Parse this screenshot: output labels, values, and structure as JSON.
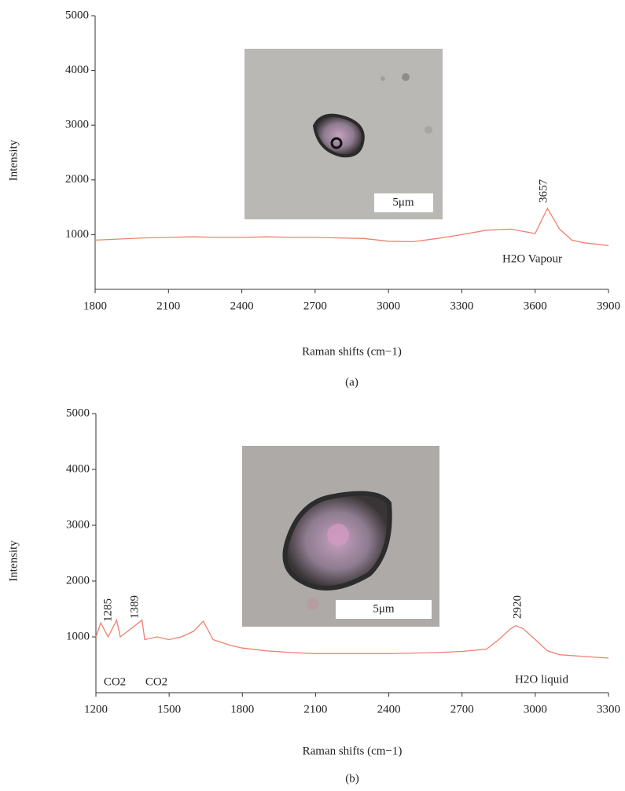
{
  "chart_data": [
    {
      "type": "line",
      "xlabel": "Raman shifts (cm−1)",
      "ylabel": "Intensity",
      "caption": "(a)",
      "xlim": [
        1800,
        3900
      ],
      "xticks": [
        1800,
        2100,
        2400,
        2700,
        3000,
        3300,
        3600,
        3900
      ],
      "ylim": [
        0,
        5000
      ],
      "yticks": [
        1000,
        2000,
        3000,
        4000,
        5000
      ],
      "annotations": [
        "3657",
        "H2O Vapour"
      ],
      "image_scale_label": "5μm",
      "x": [
        1800,
        1900,
        2000,
        2100,
        2200,
        2300,
        2400,
        2500,
        2600,
        2700,
        2800,
        2900,
        3000,
        3100,
        3200,
        3300,
        3400,
        3500,
        3600,
        3650,
        3700,
        3750,
        3800,
        3900
      ],
      "series": [
        {
          "color": "#f0806e",
          "values": [
            900,
            920,
            940,
            950,
            960,
            950,
            950,
            960,
            950,
            950,
            940,
            930,
            880,
            870,
            930,
            1000,
            1080,
            1100,
            1020,
            1480,
            1100,
            900,
            850,
            800
          ]
        }
      ]
    },
    {
      "type": "line",
      "xlabel": "Raman shifts (cm−1)",
      "ylabel": "Intensity",
      "caption": "(b)",
      "xlim": [
        1200,
        3300
      ],
      "xticks": [
        1200,
        1500,
        1800,
        2100,
        2400,
        2700,
        3000,
        3300
      ],
      "ylim": [
        0,
        5000
      ],
      "yticks": [
        1000,
        2000,
        3000,
        4000,
        5000
      ],
      "annotations": [
        "1285",
        "1389",
        "2920",
        "CO2",
        "CO2",
        "H2O liquid"
      ],
      "image_scale_label": "5μm",
      "x": [
        1200,
        1220,
        1250,
        1285,
        1300,
        1389,
        1400,
        1450,
        1500,
        1550,
        1600,
        1640,
        1680,
        1750,
        1800,
        1900,
        2000,
        2100,
        2200,
        2300,
        2400,
        2500,
        2600,
        2700,
        2800,
        2850,
        2900,
        2920,
        2950,
        3000,
        3050,
        3100,
        3200,
        3300
      ],
      "series": [
        {
          "color": "#f0806e",
          "values": [
            1000,
            1250,
            1000,
            1300,
            1000,
            1300,
            950,
            1000,
            950,
            1000,
            1100,
            1280,
            950,
            850,
            800,
            750,
            720,
            700,
            700,
            700,
            700,
            710,
            720,
            740,
            780,
            950,
            1150,
            1200,
            1150,
            950,
            750,
            680,
            650,
            620
          ]
        }
      ]
    }
  ]
}
